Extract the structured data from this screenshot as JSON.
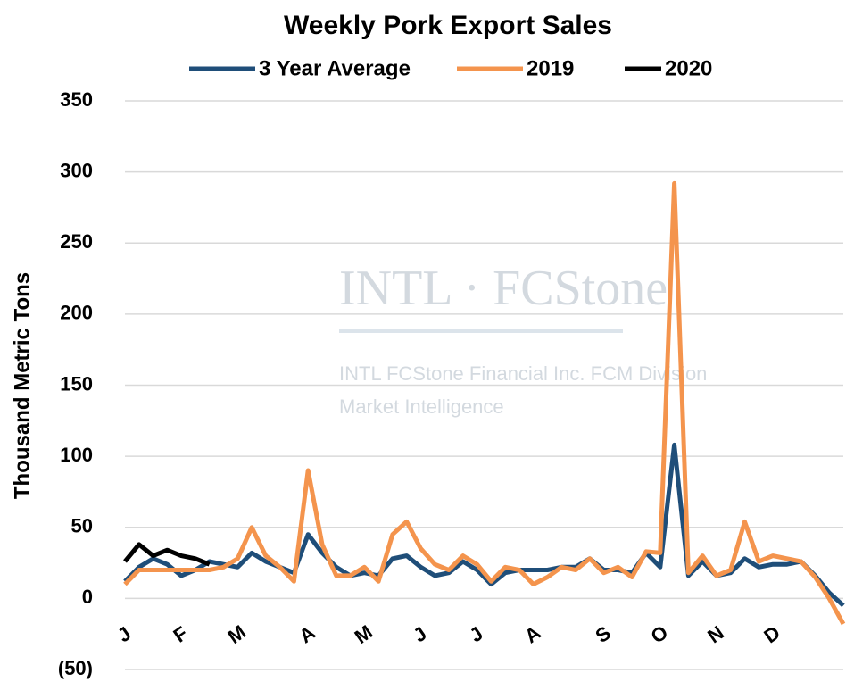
{
  "chart_data": {
    "type": "line",
    "title": "Weekly Pork Export Sales",
    "y_label": "Thousand Metric Tons",
    "watermark": [
      "INTL · FCStone",
      "INTL FCStone Financial Inc. FCM Division",
      "Market Intelligence"
    ],
    "categories": [
      "J",
      null,
      null,
      null,
      "F",
      null,
      null,
      null,
      "M",
      null,
      null,
      null,
      null,
      "A",
      null,
      null,
      null,
      "M",
      null,
      null,
      null,
      "J",
      null,
      null,
      null,
      "J",
      null,
      null,
      null,
      "A",
      null,
      null,
      null,
      null,
      "S",
      null,
      null,
      null,
      "O",
      null,
      null,
      null,
      "N",
      null,
      null,
      null,
      "D",
      null,
      null,
      null,
      null,
      null
    ],
    "series": [
      {
        "name": "3 Year Average",
        "color": "#1f4e79",
        "values": [
          12,
          22,
          28,
          24,
          16,
          20,
          26,
          24,
          22,
          32,
          26,
          22,
          18,
          45,
          32,
          22,
          16,
          18,
          16,
          28,
          30,
          22,
          16,
          18,
          26,
          20,
          10,
          18,
          20,
          20,
          20,
          22,
          22,
          28,
          20,
          20,
          18,
          32,
          22,
          108,
          16,
          26,
          16,
          18,
          28,
          22,
          24,
          24,
          26,
          16,
          4,
          -5
        ]
      },
      {
        "name": "2019",
        "color": "#f4944d",
        "values": [
          10,
          20,
          20,
          20,
          20,
          20,
          20,
          22,
          28,
          50,
          30,
          22,
          12,
          90,
          38,
          16,
          16,
          22,
          12,
          45,
          54,
          35,
          24,
          20,
          30,
          24,
          12,
          22,
          20,
          10,
          15,
          22,
          20,
          28,
          18,
          22,
          15,
          33,
          32,
          292,
          18,
          30,
          16,
          20,
          54,
          26,
          30,
          28,
          26,
          15,
          0,
          -18
        ]
      },
      {
        "name": "2020",
        "color": "#000000",
        "values": [
          26,
          38,
          30,
          34,
          30,
          28,
          24,
          null,
          null,
          null,
          null,
          null,
          null,
          null,
          null,
          null,
          null,
          null,
          null,
          null,
          null,
          null,
          null,
          null,
          null,
          null,
          null,
          null,
          null,
          null,
          null,
          null,
          null,
          null,
          null,
          null,
          null,
          null,
          null,
          null,
          null,
          null,
          null,
          null,
          null,
          null,
          null,
          null,
          null,
          null,
          null,
          null
        ]
      }
    ],
    "ylim": [
      -50,
      350
    ],
    "yticks": [
      {
        "value": -50,
        "label": "(50)"
      },
      0,
      50,
      100,
      150,
      200,
      250,
      300,
      350
    ],
    "grid": true,
    "legend": "top"
  }
}
